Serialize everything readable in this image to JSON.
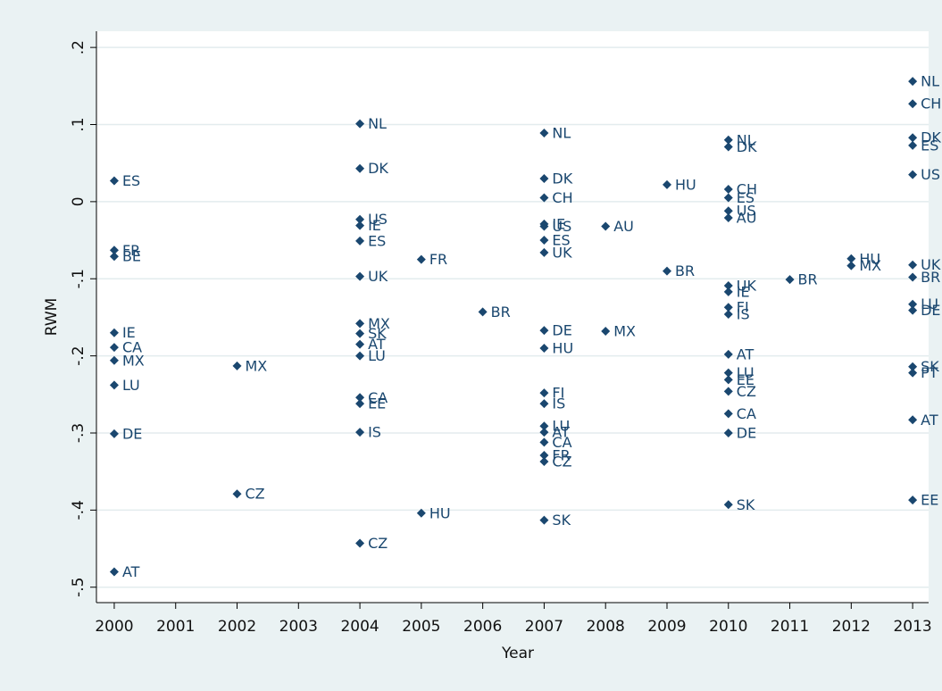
{
  "chart_data": {
    "type": "scatter",
    "x_label": "Year",
    "y_label": "RWM",
    "color": "#1a476f",
    "grid": true,
    "xlim": [
      1999.71,
      2013.26
    ],
    "xticks": [
      2000,
      2001,
      2002,
      2003,
      2004,
      2005,
      2006,
      2007,
      2008,
      2009,
      2010,
      2011,
      2012,
      2013
    ],
    "ylim": [
      -0.52,
      0.221
    ],
    "yticks": [
      {
        "value": -0.5,
        "label": "-.5"
      },
      {
        "value": -0.4,
        "label": "-.4"
      },
      {
        "value": -0.3,
        "label": "-.3"
      },
      {
        "value": -0.2,
        "label": "-.2"
      },
      {
        "value": -0.1,
        "label": "-.1"
      },
      0,
      {
        "value": 0.1,
        "label": ".1"
      },
      {
        "value": 0.2,
        "label": ".2"
      }
    ],
    "x": [
      2000,
      2000,
      2000,
      2000,
      2000,
      2000,
      2000,
      2000,
      2000,
      2002,
      2002,
      2004,
      2004,
      2004,
      2004,
      2004,
      2004,
      2004,
      2004,
      2004,
      2004,
      2004,
      2004,
      2004,
      2004,
      2005,
      2005,
      2006,
      2007,
      2007,
      2007,
      2007,
      2007,
      2007,
      2007,
      2007,
      2007,
      2007,
      2007,
      2007,
      2007,
      2007,
      2007,
      2007,
      2007,
      2008,
      2008,
      2009,
      2009,
      2010,
      2010,
      2010,
      2010,
      2010,
      2010,
      2010,
      2010,
      2010,
      2010,
      2010,
      2010,
      2010,
      2010,
      2010,
      2010,
      2010,
      2011,
      2012,
      2012,
      2013,
      2013,
      2013,
      2013,
      2013,
      2013,
      2013,
      2013,
      2013,
      2013,
      2013,
      2013,
      2013
    ],
    "values": [
      0.027,
      -0.063,
      -0.071,
      -0.17,
      -0.189,
      -0.206,
      -0.238,
      -0.301,
      -0.48,
      -0.213,
      -0.379,
      0.101,
      0.043,
      -0.023,
      -0.031,
      -0.051,
      -0.097,
      -0.158,
      -0.171,
      -0.185,
      -0.2,
      -0.254,
      -0.262,
      -0.299,
      -0.443,
      -0.075,
      -0.404,
      -0.143,
      0.089,
      0.03,
      0.005,
      -0.029,
      -0.032,
      -0.05,
      -0.066,
      -0.167,
      -0.19,
      -0.248,
      -0.262,
      -0.291,
      -0.299,
      -0.312,
      -0.329,
      -0.337,
      -0.413,
      -0.032,
      -0.168,
      0.022,
      -0.09,
      0.08,
      0.071,
      0.016,
      0.005,
      -0.012,
      -0.021,
      -0.109,
      -0.117,
      -0.137,
      -0.146,
      -0.198,
      -0.222,
      -0.231,
      -0.246,
      -0.275,
      -0.3,
      -0.393,
      -0.101,
      -0.074,
      -0.083,
      0.156,
      0.127,
      0.083,
      0.073,
      0.035,
      -0.082,
      -0.098,
      -0.133,
      -0.141,
      -0.214,
      -0.222,
      -0.283,
      -0.387
    ],
    "labels": [
      "ES",
      "FR",
      "BE",
      "IE",
      "CA",
      "MX",
      "LU",
      "DE",
      "AT",
      "MX",
      "CZ",
      "NL",
      "DK",
      "US",
      "IE",
      "ES",
      "UK",
      "MX",
      "SK",
      "AT",
      "LU",
      "CA",
      "EE",
      "IS",
      "CZ",
      "FR",
      "HU",
      "BR",
      "NL",
      "DK",
      "CH",
      "IE",
      "US",
      "ES",
      "UK",
      "DE",
      "HU",
      "FI",
      "IS",
      "LU",
      "AT",
      "CA",
      "FR",
      "CZ",
      "SK",
      "AU",
      "MX",
      "HU",
      "BR",
      "NL",
      "DK",
      "CH",
      "ES",
      "US",
      "AU",
      "UK",
      "IE",
      "FI",
      "IS",
      "AT",
      "LU",
      "EE",
      "CZ",
      "CA",
      "DE",
      "SK",
      "BR",
      "HU",
      "MX",
      "NL",
      "CH",
      "DK",
      "ES",
      "US",
      "UK",
      "BR",
      "LU",
      "DE",
      "SK",
      "PT",
      "AT",
      "EE"
    ]
  }
}
